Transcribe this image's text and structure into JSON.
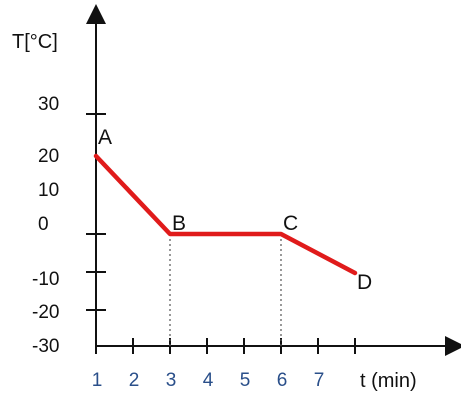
{
  "chart_data": {
    "type": "line",
    "title": "",
    "xlabel": "t (min)",
    "ylabel": "T[°C]",
    "x_ticks": [
      1,
      2,
      3,
      4,
      5,
      6,
      7,
      8
    ],
    "x_tick_labels": [
      "1",
      "2",
      "3",
      "4",
      "5",
      "6",
      "7",
      ""
    ],
    "y_tick_labels": [
      {
        "value": 30,
        "label": "30"
      },
      {
        "value": 20,
        "label": "20"
      },
      {
        "value": 10,
        "label": "10"
      },
      {
        "value": 0,
        "label": "0"
      },
      {
        "value": -10,
        "label": "-10"
      },
      {
        "value": -20,
        "label": "-20"
      },
      {
        "value": -30,
        "label": "-30"
      }
    ],
    "xlim": [
      1,
      8.4
    ],
    "ylim": [
      -30,
      40
    ],
    "grid": false,
    "series": [
      {
        "color": "#e01b1b",
        "points": [
          {
            "x": 1,
            "y": 20,
            "label": "A"
          },
          {
            "x": 3,
            "y": 0,
            "label": "B"
          },
          {
            "x": 6,
            "y": 0,
            "label": "C"
          },
          {
            "x": 8,
            "y": -10,
            "label": "D"
          }
        ]
      }
    ],
    "annotations": [
      "dotted drop lines from B and C to the time axis"
    ]
  }
}
